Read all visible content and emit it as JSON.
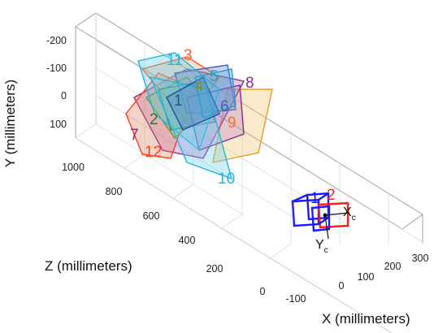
{
  "chart_data": {
    "type": "scatter3d",
    "title": "",
    "axes": {
      "x": {
        "label": "X (millimeters)",
        "ticks": [
          "-100",
          "0",
          "100",
          "200",
          "300"
        ]
      },
      "y": {
        "label": "Y (millimeters)",
        "ticks": [
          "-200",
          "-100",
          "0",
          "100"
        ]
      },
      "z": {
        "label": "Z (millimeters)",
        "ticks": [
          "0",
          "200",
          "400",
          "600",
          "800",
          "1000"
        ]
      }
    },
    "grid": true,
    "camera": {
      "origin_label": "c",
      "axis_x": "X",
      "axis_y": "Y",
      "pattern_ids": [
        "1",
        "2"
      ],
      "colors": [
        "#1a1aff",
        "#ff1a1a"
      ]
    },
    "patterns": [
      {
        "id": "1",
        "color": "#1f4e9c"
      },
      {
        "id": "2",
        "color": "#2f6f3a"
      },
      {
        "id": "3",
        "color": "#ff5a1f"
      },
      {
        "id": "4",
        "color": "#8a8a1a"
      },
      {
        "id": "5",
        "color": "#2a9cc8"
      },
      {
        "id": "6",
        "color": "#3a5fbf"
      },
      {
        "id": "7",
        "color": "#8c2a8c"
      },
      {
        "id": "8",
        "color": "#8c2a8c"
      },
      {
        "id": "9",
        "color": "#ff6a3a"
      },
      {
        "id": "10",
        "color": "#1ab8e0"
      },
      {
        "id": "11",
        "color": "#1ab8e0"
      },
      {
        "id": "12",
        "color": "#ff3a1f"
      }
    ]
  }
}
